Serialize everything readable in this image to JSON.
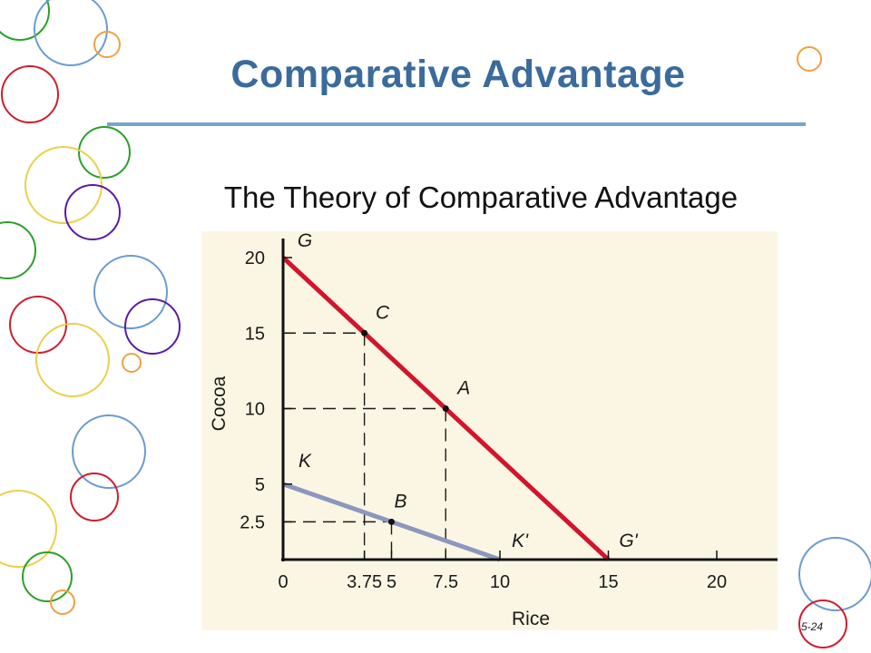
{
  "slide": {
    "title": "Comparative Advantage",
    "subtitle": "The Theory of Comparative Advantage",
    "number": "5-24"
  },
  "colors": {
    "title": "#3a6b9c",
    "rule": "#7aa3cf",
    "chart_bg": "#fbf6e3",
    "line_ghana": "#d3142b",
    "line_korea": "#8c97bf"
  },
  "chart_data": {
    "type": "line",
    "xlabel": "Rice",
    "ylabel": "Cocoa",
    "xlim": [
      0,
      23
    ],
    "ylim": [
      0,
      21
    ],
    "x_ticks": [
      "0",
      "3.75",
      "5",
      "7.5",
      "10",
      "15",
      "20"
    ],
    "y_ticks": [
      "2.5",
      "5",
      "10",
      "15",
      "20"
    ],
    "series": [
      {
        "name": "",
        "color": "#d3142b",
        "points": [
          [
            0,
            20
          ],
          [
            15,
            0
          ]
        ],
        "start_label": "G",
        "end_label": "G'"
      },
      {
        "name": "",
        "color": "#8c97bf",
        "points": [
          [
            0,
            5
          ],
          [
            10,
            0
          ]
        ],
        "start_label": "K",
        "end_label": "K'"
      }
    ],
    "marked_points": [
      {
        "label": "C",
        "x": 3.75,
        "y": 15
      },
      {
        "label": "A",
        "x": 7.5,
        "y": 10
      },
      {
        "label": "B",
        "x": 5,
        "y": 2.5
      }
    ],
    "grid": false,
    "legend": "none"
  }
}
